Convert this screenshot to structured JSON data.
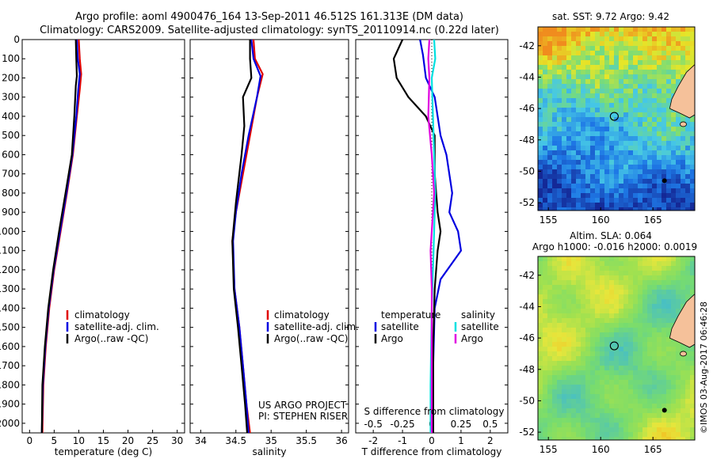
{
  "header": {
    "line1": "Argo profile: aoml 4900476_164 13-Sep-2011 46.512S 161.313E (DM data)",
    "line2": "Climatology: CARS2009. Satellite-adjusted climatology: synTS_20110914.nc (0.22d later)"
  },
  "credit": {
    "line1": "US ARGO PROJECT",
    "line2": "PI: STEPHEN RISER"
  },
  "stamp": "©IMOS 03-Aug-2017 06:46:28",
  "colors": {
    "climatology": "#e00000",
    "satellite": "#0000e0",
    "argo": "#000000",
    "sal_satellite": "#00e0e0",
    "sal_argo": "#e000e0",
    "land": "#f5c19a"
  },
  "chart_data": [
    {
      "type": "line",
      "xlabel": "temperature (deg C)",
      "ylabel": "",
      "xlim": [
        -1.5,
        31.5
      ],
      "ylim": [
        2050,
        0
      ],
      "xticks": [
        "0",
        "5",
        "10",
        "15",
        "20",
        "25",
        "30"
      ],
      "yticks": [
        "0",
        "100",
        "200",
        "300",
        "400",
        "500",
        "600",
        "700",
        "800",
        "900",
        "1000",
        "1100",
        "1200",
        "1300",
        "1400",
        "1500",
        "1600",
        "1700",
        "1800",
        "1900",
        "2000"
      ],
      "legend": [
        "climatology",
        "satellite-adj. clim.",
        "Argo(..raw -QC)"
      ],
      "series": [
        {
          "key": "climatology",
          "points": [
            [
              10.0,
              0
            ],
            [
              10.2,
              100
            ],
            [
              10.5,
              180
            ],
            [
              10.2,
              260
            ],
            [
              9.6,
              400
            ],
            [
              8.8,
              600
            ],
            [
              7.6,
              800
            ],
            [
              6.3,
              1000
            ],
            [
              5.0,
              1200
            ],
            [
              4.0,
              1400
            ],
            [
              3.3,
              1600
            ],
            [
              2.8,
              1800
            ],
            [
              2.6,
              2050
            ]
          ]
        },
        {
          "key": "satellite",
          "points": [
            [
              9.6,
              0
            ],
            [
              9.8,
              100
            ],
            [
              10.2,
              180
            ],
            [
              9.9,
              260
            ],
            [
              9.5,
              400
            ],
            [
              8.7,
              600
            ],
            [
              7.5,
              800
            ],
            [
              6.2,
              1000
            ],
            [
              4.9,
              1200
            ],
            [
              3.9,
              1400
            ],
            [
              3.2,
              1600
            ],
            [
              2.7,
              1800
            ],
            [
              2.5,
              2050
            ]
          ]
        },
        {
          "key": "argo",
          "points": [
            [
              9.4,
              0
            ],
            [
              9.5,
              100
            ],
            [
              9.6,
              190
            ],
            [
              9.4,
              240
            ],
            [
              9.1,
              400
            ],
            [
              8.6,
              600
            ],
            [
              7.3,
              800
            ],
            [
              6.0,
              1000
            ],
            [
              4.8,
              1200
            ],
            [
              3.8,
              1400
            ],
            [
              3.1,
              1600
            ],
            [
              2.6,
              1800
            ],
            [
              2.5,
              2050
            ]
          ]
        }
      ]
    },
    {
      "type": "line",
      "xlabel": "salinity",
      "ylabel": "",
      "xlim": [
        33.85,
        36.1
      ],
      "ylim": [
        2050,
        0
      ],
      "xticks": [
        "34",
        "34.5",
        "35",
        "35.5",
        "36"
      ],
      "legend": [
        "climatology",
        "satellite-adj. clim.",
        "Argo(..raw -QC)"
      ],
      "series": [
        {
          "key": "climatology",
          "points": [
            [
              34.75,
              0
            ],
            [
              34.77,
              100
            ],
            [
              34.88,
              180
            ],
            [
              34.8,
              300
            ],
            [
              34.7,
              500
            ],
            [
              34.6,
              700
            ],
            [
              34.5,
              900
            ],
            [
              34.45,
              1050
            ],
            [
              34.48,
              1300
            ],
            [
              34.55,
              1500
            ],
            [
              34.6,
              1700
            ],
            [
              34.65,
              1900
            ],
            [
              34.7,
              2050
            ]
          ]
        },
        {
          "key": "satellite",
          "points": [
            [
              34.72,
              0
            ],
            [
              34.75,
              100
            ],
            [
              34.85,
              190
            ],
            [
              34.8,
              300
            ],
            [
              34.68,
              500
            ],
            [
              34.58,
              700
            ],
            [
              34.5,
              900
            ],
            [
              34.46,
              1050
            ],
            [
              34.48,
              1300
            ],
            [
              34.55,
              1500
            ],
            [
              34.6,
              1700
            ],
            [
              34.65,
              1900
            ],
            [
              34.68,
              2050
            ]
          ]
        },
        {
          "key": "argo",
          "points": [
            [
              34.7,
              0
            ],
            [
              34.7,
              100
            ],
            [
              34.72,
              200
            ],
            [
              34.6,
              300
            ],
            [
              34.62,
              450
            ],
            [
              34.58,
              600
            ],
            [
              34.5,
              850
            ],
            [
              34.45,
              1050
            ],
            [
              34.47,
              1300
            ],
            [
              34.53,
              1500
            ],
            [
              34.58,
              1700
            ],
            [
              34.63,
              1900
            ],
            [
              34.66,
              2050
            ]
          ]
        }
      ]
    },
    {
      "type": "line",
      "xlabel": "T difference from climatology",
      "ylabel": "",
      "xlim": [
        -2.6,
        2.6
      ],
      "ylim": [
        2050,
        0
      ],
      "xticks": [
        "-2",
        "-1",
        "0",
        "1",
        "2"
      ],
      "top_axis": {
        "label": "S difference from climatology",
        "ticks": [
          "-0.5",
          "-0.25",
          "0",
          "0.25",
          "0.5"
        ]
      },
      "legend_left_title": "temperature",
      "legend_right_title": "salinity",
      "legend_left": [
        "satellite",
        "Argo"
      ],
      "legend_right": [
        "satellite",
        "Argo"
      ],
      "series": [
        {
          "key": "t_satellite",
          "points": [
            [
              -0.4,
              0
            ],
            [
              -0.3,
              80
            ],
            [
              -0.2,
              200
            ],
            [
              0.1,
              300
            ],
            [
              0.3,
              500
            ],
            [
              0.5,
              600
            ],
            [
              0.7,
              800
            ],
            [
              0.6,
              900
            ],
            [
              0.9,
              1000
            ],
            [
              1.0,
              1100
            ],
            [
              0.3,
              1250
            ],
            [
              0.1,
              1400
            ],
            [
              0.05,
              1700
            ],
            [
              0.05,
              2050
            ]
          ]
        },
        {
          "key": "t_argo",
          "points": [
            [
              -1.0,
              0
            ],
            [
              -1.3,
              100
            ],
            [
              -1.2,
              200
            ],
            [
              -0.8,
              300
            ],
            [
              -0.2,
              400
            ],
            [
              0.1,
              500
            ],
            [
              0.1,
              700
            ],
            [
              0.2,
              900
            ],
            [
              0.3,
              1000
            ],
            [
              0.2,
              1100
            ],
            [
              0.1,
              1300
            ],
            [
              0.05,
              1600
            ],
            [
              0.05,
              2050
            ]
          ]
        },
        {
          "key": "s_satellite",
          "points": [
            [
              0.02,
              0
            ],
            [
              0.03,
              100
            ],
            [
              0.0,
              200
            ],
            [
              0.01,
              400
            ],
            [
              0.02,
              600
            ],
            [
              0.03,
              800
            ],
            [
              0.02,
              1000
            ],
            [
              0.01,
              1200
            ],
            [
              0.0,
              1400
            ],
            [
              -0.01,
              1800
            ],
            [
              -0.01,
              2050
            ]
          ]
        },
        {
          "key": "s_argo",
          "points": [
            [
              -0.02,
              0
            ],
            [
              -0.03,
              100
            ],
            [
              -0.02,
              200
            ],
            [
              -0.03,
              400
            ],
            [
              0.0,
              600
            ],
            [
              0.02,
              800
            ],
            [
              0.0,
              1000
            ],
            [
              -0.01,
              1100
            ],
            [
              0.0,
              1300
            ],
            [
              0.0,
              1600
            ],
            [
              0.0,
              2050
            ]
          ]
        }
      ]
    },
    {
      "type": "heatmap",
      "title": "sat. SST: 9.72  Argo: 9.42",
      "xlim": [
        154,
        169
      ],
      "ylim": [
        -52.5,
        -40.8
      ],
      "xticks": [
        "155",
        "160",
        "165"
      ],
      "yticks": [
        "-42",
        "-44",
        "-46",
        "-48",
        "-50",
        "-52"
      ],
      "marker": [
        161.3,
        -46.5
      ]
    },
    {
      "type": "heatmap",
      "title": "Altim. SLA: 0.064",
      "subtitle": "Argo h1000: -0.016 h2000: 0.0019",
      "xlim": [
        154,
        169
      ],
      "ylim": [
        -52.5,
        -40.8
      ],
      "xticks": [
        "155",
        "160",
        "165"
      ],
      "yticks": [
        "-42",
        "-44",
        "-46",
        "-48",
        "-50",
        "-52"
      ],
      "marker": [
        161.3,
        -46.5
      ]
    }
  ]
}
